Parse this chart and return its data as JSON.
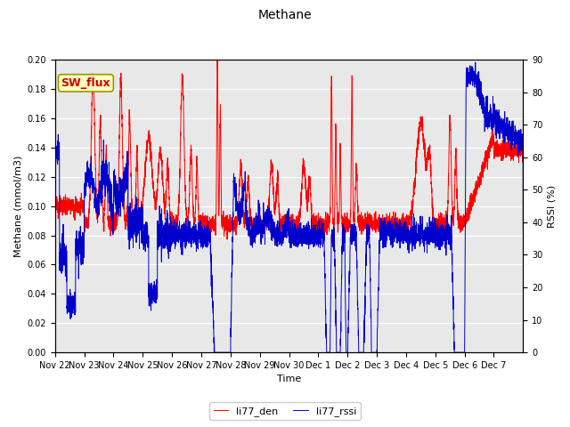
{
  "title": "Methane",
  "ylabel_left": "Methane (mmol/m3)",
  "ylabel_right": "RSSI (%)",
  "xlabel": "Time",
  "ylim_left": [
    0.0,
    0.2
  ],
  "ylim_right": [
    0,
    90
  ],
  "yticks_left": [
    0.0,
    0.02,
    0.04,
    0.06,
    0.08,
    0.1,
    0.12,
    0.14,
    0.16,
    0.18,
    0.2
  ],
  "yticks_right": [
    0,
    10,
    20,
    30,
    40,
    50,
    60,
    70,
    80,
    90
  ],
  "xtick_labels": [
    "Nov 22",
    "Nov 23",
    "Nov 24",
    "Nov 25",
    "Nov 26",
    "Nov 27",
    "Nov 28",
    "Nov 29",
    "Nov 30",
    "Dec 1",
    "Dec 2",
    "Dec 3",
    "Dec 4",
    "Dec 5",
    "Dec 6",
    "Dec 7"
  ],
  "color_den": "#ff0000",
  "color_rssi": "#0000cc",
  "legend_den": "li77_den",
  "legend_rssi": "li77_rssi",
  "sw_flux_label": "SW_flux",
  "background_color": "#e8e8e8",
  "fig_background": "#ffffff",
  "line_width": 0.7,
  "title_fontsize": 10,
  "label_fontsize": 8,
  "tick_fontsize": 7
}
